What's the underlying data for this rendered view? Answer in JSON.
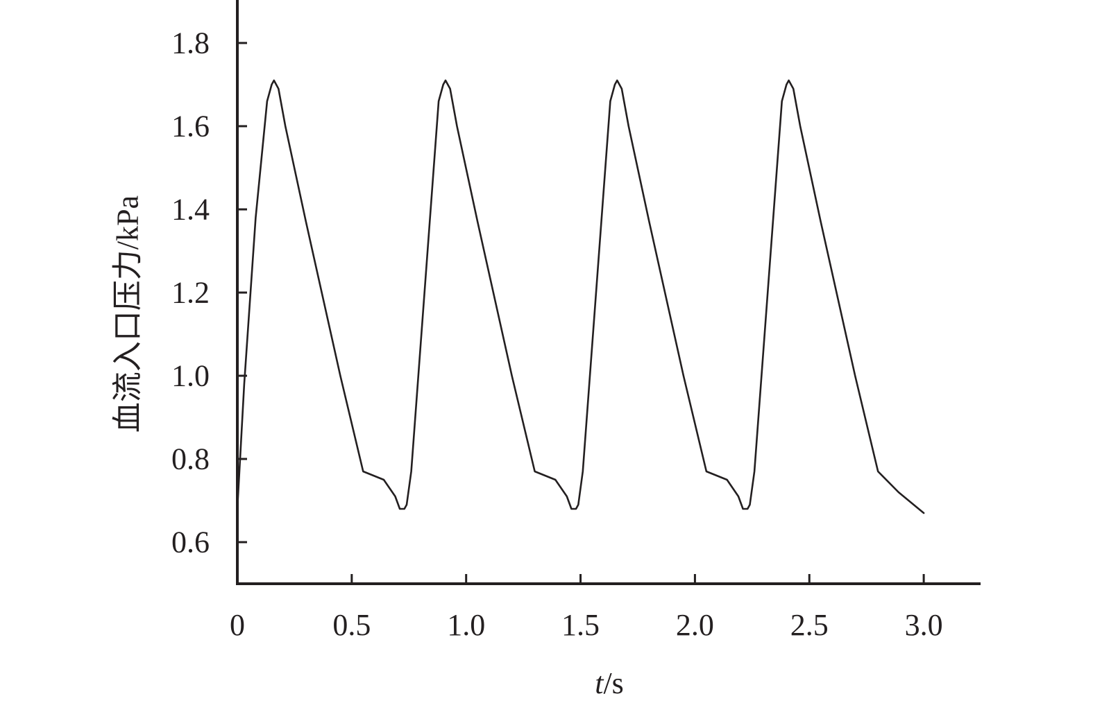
{
  "chart_data": {
    "type": "line",
    "xlabel": "t/s",
    "xlabel_var": "t",
    "xlabel_unit": "/s",
    "ylabel": "血流入口压力/kPa",
    "xlim": [
      0,
      3.25
    ],
    "ylim": [
      0.5,
      1.9
    ],
    "xticks": [
      0,
      0.5,
      1.0,
      1.5,
      2.0,
      2.5,
      3.0
    ],
    "xtick_labels": [
      "0",
      "0.5",
      "1.0",
      "1.5",
      "2.0",
      "2.5",
      "3.0"
    ],
    "yticks": [
      0.6,
      0.8,
      1.0,
      1.2,
      1.4,
      1.6,
      1.8
    ],
    "ytick_labels": [
      "0.6",
      "0.8",
      "1.0",
      "1.2",
      "1.4",
      "1.6",
      "1.8"
    ],
    "grid": false,
    "line_color": "#231f20",
    "series": [
      {
        "x": [
          0,
          0.03,
          0.08,
          0.13,
          0.15,
          0.16,
          0.18,
          0.21,
          0.3,
          0.45,
          0.55,
          0.64,
          0.69,
          0.71,
          0.73,
          0.74,
          0.76,
          0.88,
          0.9,
          0.91,
          0.93,
          0.96,
          1.05,
          1.2,
          1.3,
          1.39,
          1.44,
          1.46,
          1.48,
          1.49,
          1.51,
          1.63,
          1.65,
          1.66,
          1.68,
          1.71,
          1.8,
          1.95,
          2.05,
          2.14,
          2.19,
          2.21,
          2.23,
          2.24,
          2.26,
          2.38,
          2.4,
          2.41,
          2.43,
          2.46,
          2.55,
          2.7,
          2.8,
          2.89,
          3.0
        ],
        "values": [
          0.68,
          0.98,
          1.38,
          1.66,
          1.7,
          1.71,
          1.69,
          1.6,
          1.37,
          1.0,
          0.77,
          0.75,
          0.71,
          0.68,
          0.68,
          0.69,
          0.77,
          1.66,
          1.7,
          1.71,
          1.69,
          1.6,
          1.37,
          1.0,
          0.77,
          0.75,
          0.71,
          0.68,
          0.68,
          0.69,
          0.77,
          1.66,
          1.7,
          1.71,
          1.69,
          1.6,
          1.37,
          1.0,
          0.77,
          0.75,
          0.71,
          0.68,
          0.68,
          0.69,
          0.77,
          1.66,
          1.7,
          1.71,
          1.69,
          1.6,
          1.37,
          1.0,
          0.77,
          0.72,
          0.67
        ]
      }
    ]
  }
}
